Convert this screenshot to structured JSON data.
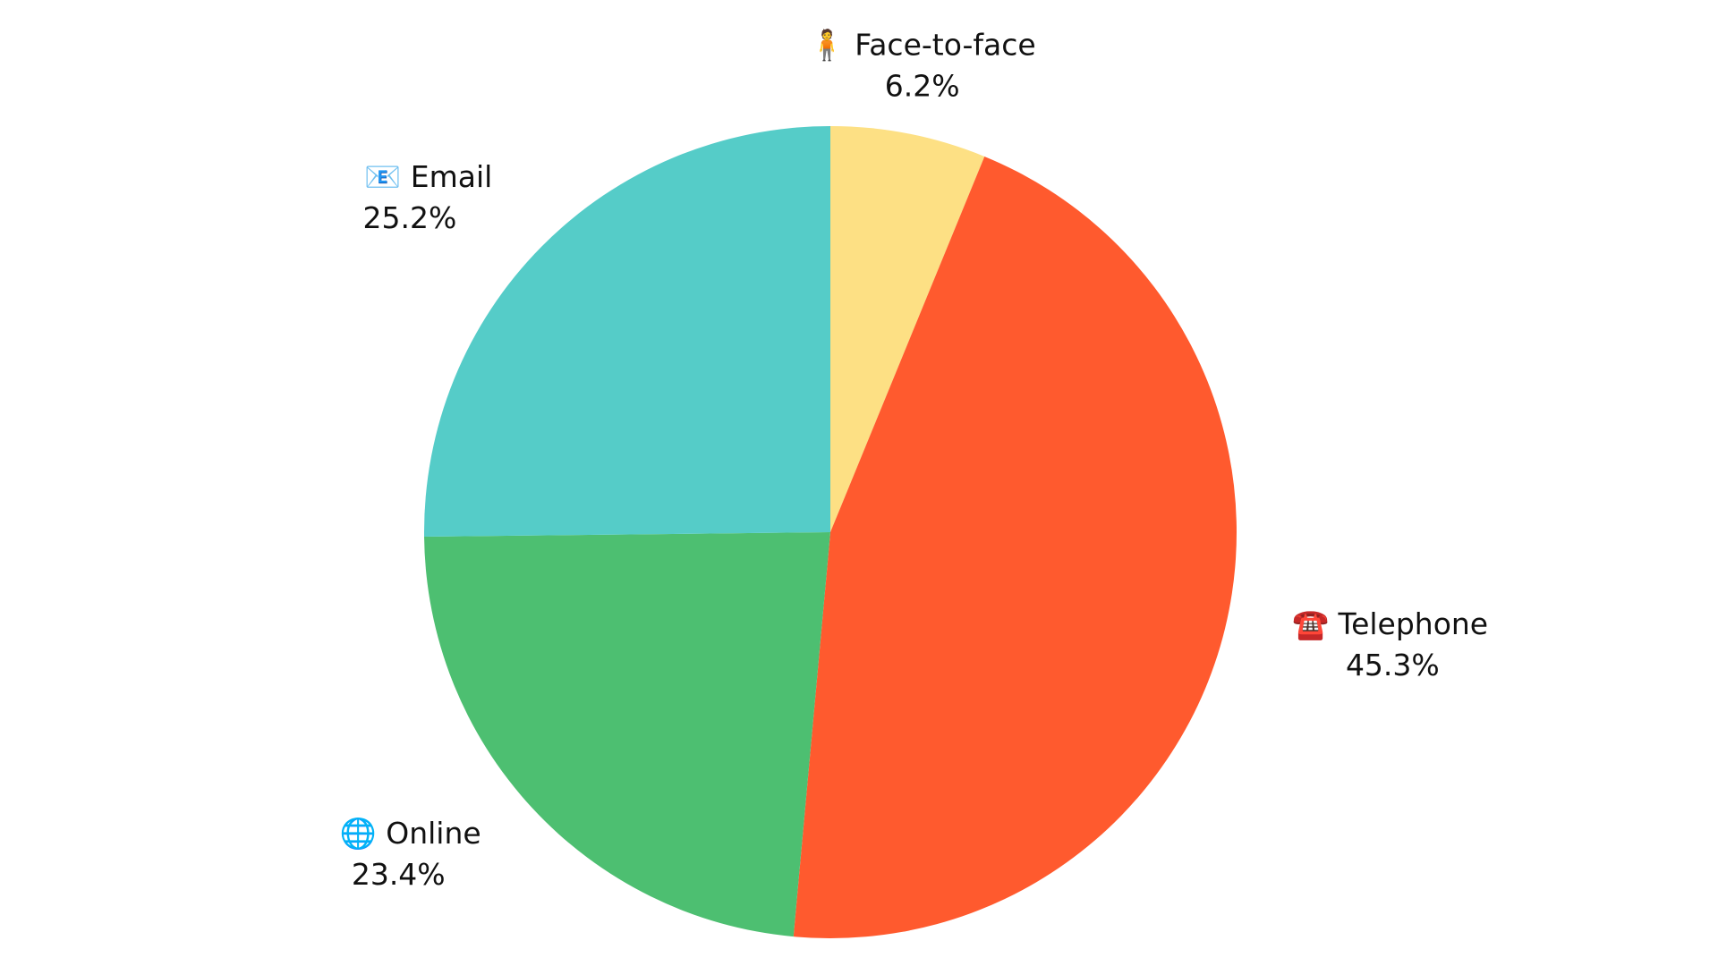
{
  "chart_data": {
    "type": "pie",
    "categories": [
      "🧍 Face-to-face",
      "☎️ Telephone",
      "🌐 Online",
      "📧 Email"
    ],
    "values": [
      6.2,
      45.3,
      23.4,
      25.2
    ],
    "value_labels": [
      "6.2%",
      "45.3%",
      "23.4%",
      "25.2%"
    ],
    "colors": [
      "#FDE084",
      "#FF5A2E",
      "#4DBF71",
      "#55CCC8"
    ]
  }
}
